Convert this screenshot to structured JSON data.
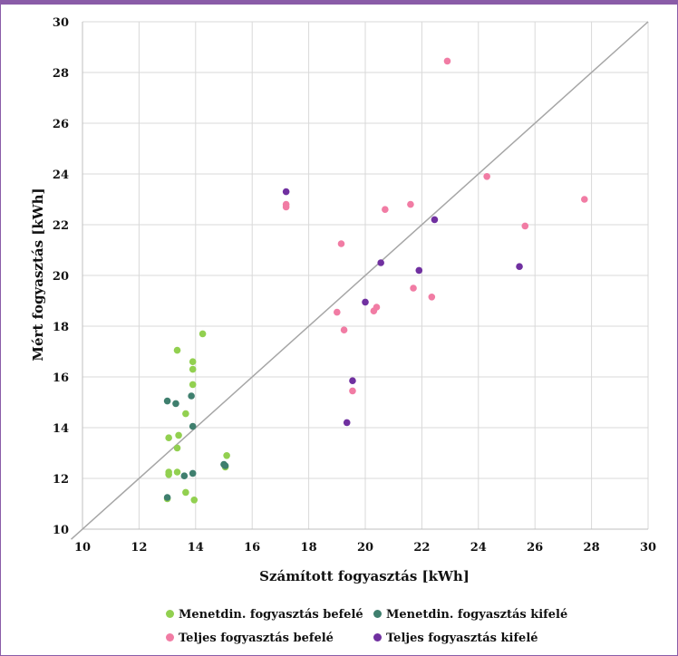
{
  "chart_data": {
    "type": "scatter",
    "title": "",
    "xlabel": "Számított fogyasztás [kWh]",
    "ylabel": "Mért fogyasztás [kWh]",
    "xlim": [
      10,
      30
    ],
    "ylim": [
      10,
      30
    ],
    "xticks": [
      "10",
      "12",
      "14",
      "16",
      "18",
      "20",
      "22",
      "24",
      "26",
      "28",
      "30"
    ],
    "yticks": [
      "10",
      "12",
      "14",
      "16",
      "18",
      "20",
      "22",
      "24",
      "26",
      "28",
      "30"
    ],
    "grid": true,
    "legend_position": "bottom",
    "reference_line": {
      "type": "y=x",
      "color": "#a6a6a6"
    },
    "series": [
      {
        "name": "Menetdin. fogyasztás befelé",
        "color": "#92d050",
        "points": [
          [
            13.35,
            17.05
          ],
          [
            14.25,
            17.7
          ],
          [
            13.9,
            16.6
          ],
          [
            13.9,
            16.3
          ],
          [
            13.9,
            15.7
          ],
          [
            13.65,
            14.55
          ],
          [
            13.4,
            13.7
          ],
          [
            13.05,
            13.6
          ],
          [
            13.35,
            13.2
          ],
          [
            15.1,
            12.9
          ],
          [
            15.05,
            12.45
          ],
          [
            13.05,
            12.25
          ],
          [
            13.35,
            12.25
          ],
          [
            13.05,
            12.15
          ],
          [
            13.65,
            11.45
          ],
          [
            13.95,
            11.15
          ],
          [
            13.0,
            11.2
          ]
        ]
      },
      {
        "name": "Menetdin. fogyasztás kifelé",
        "color": "#3f7f6e",
        "points": [
          [
            13.0,
            15.05
          ],
          [
            13.3,
            14.95
          ],
          [
            13.85,
            15.25
          ],
          [
            13.9,
            14.05
          ],
          [
            15.0,
            12.55
          ],
          [
            15.05,
            12.5
          ],
          [
            13.6,
            12.1
          ],
          [
            13.9,
            12.2
          ],
          [
            13.0,
            11.25
          ]
        ]
      },
      {
        "name": "Teljes fogyasztás befelé",
        "color": "#f17ca4",
        "points": [
          [
            22.9,
            28.45
          ],
          [
            24.3,
            23.9
          ],
          [
            27.75,
            23.0
          ],
          [
            25.65,
            21.95
          ],
          [
            21.6,
            22.8
          ],
          [
            20.7,
            22.6
          ],
          [
            17.2,
            22.8
          ],
          [
            17.2,
            22.7
          ],
          [
            19.15,
            21.25
          ],
          [
            21.7,
            19.5
          ],
          [
            22.35,
            19.15
          ],
          [
            20.4,
            18.75
          ],
          [
            20.3,
            18.6
          ],
          [
            19.0,
            18.55
          ],
          [
            19.25,
            17.85
          ],
          [
            19.55,
            15.45
          ]
        ]
      },
      {
        "name": "Teljes fogyasztás kifelé",
        "color": "#7030a0",
        "points": [
          [
            17.2,
            23.3
          ],
          [
            22.45,
            22.2
          ],
          [
            20.55,
            20.5
          ],
          [
            21.9,
            20.2
          ],
          [
            25.45,
            20.35
          ],
          [
            20.0,
            18.95
          ],
          [
            19.55,
            15.85
          ],
          [
            19.35,
            14.2
          ]
        ]
      }
    ]
  }
}
